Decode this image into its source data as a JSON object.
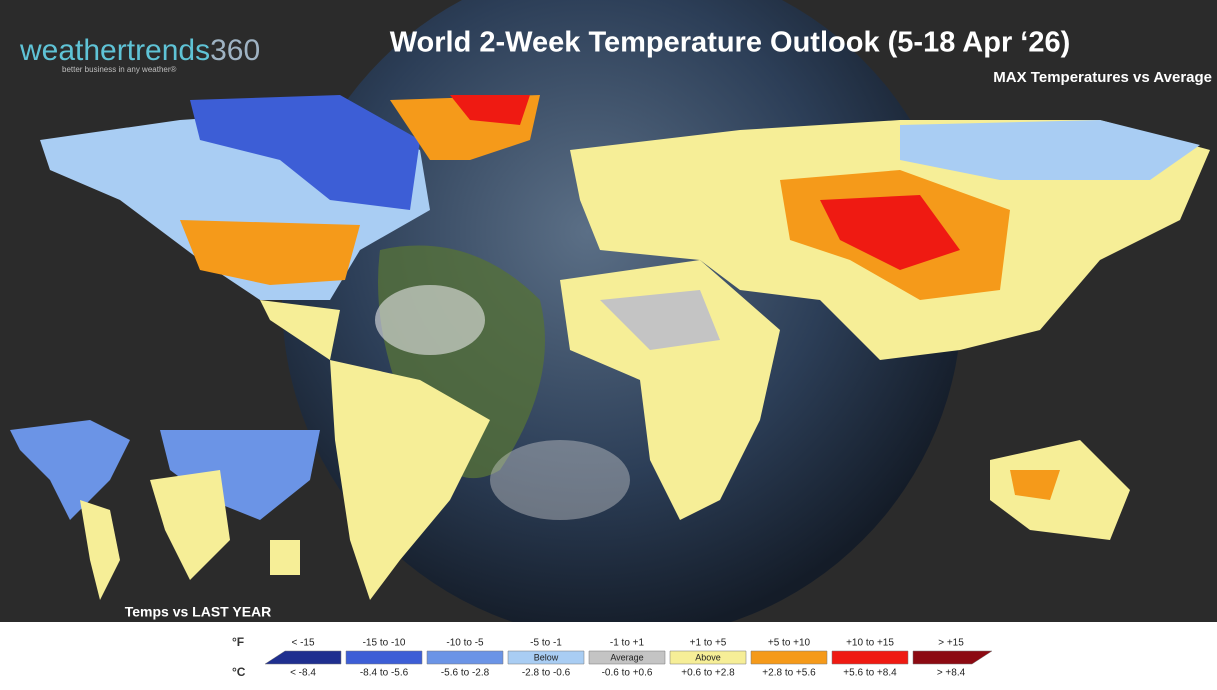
{
  "logo": {
    "brand": "weathertrends",
    "number": "360",
    "tagline": "better business in any weather®"
  },
  "title": "World 2-Week Temperature Outlook (5-18 Apr ‘26)",
  "subtitle": "MAX Temperatures vs Average",
  "inset_label": "Temps vs LAST YEAR",
  "legend": {
    "unit_f": "°F",
    "unit_c": "°C",
    "items": [
      {
        "f": "< -15",
        "c": "< -8.4",
        "color": "#1f2f8f"
      },
      {
        "f": "-15 to -10",
        "c": "-8.4 to -5.6",
        "color": "#3d5ed6"
      },
      {
        "f": "-10 to -5",
        "c": "-5.6 to -2.8",
        "color": "#6b94e6"
      },
      {
        "f": "-5 to -1",
        "c": "-2.8 to -0.6",
        "label": "Below",
        "color": "#a9cdf3"
      },
      {
        "f": "-1 to +1",
        "c": "-0.6 to +0.6",
        "label": "Average",
        "color": "#c4c4c4"
      },
      {
        "f": "+1 to +5",
        "c": "+0.6 to +2.8",
        "label": "Above",
        "color": "#f6ee97"
      },
      {
        "f": "+5 to +10",
        "c": "+2.8 to +5.6",
        "color": "#f59a1a"
      },
      {
        "f": "+10 to +15",
        "c": "+5.6 to +8.4",
        "color": "#ef1a12"
      },
      {
        "f": "> +15",
        "c": "> +8.4",
        "color": "#8c0a12"
      }
    ]
  }
}
